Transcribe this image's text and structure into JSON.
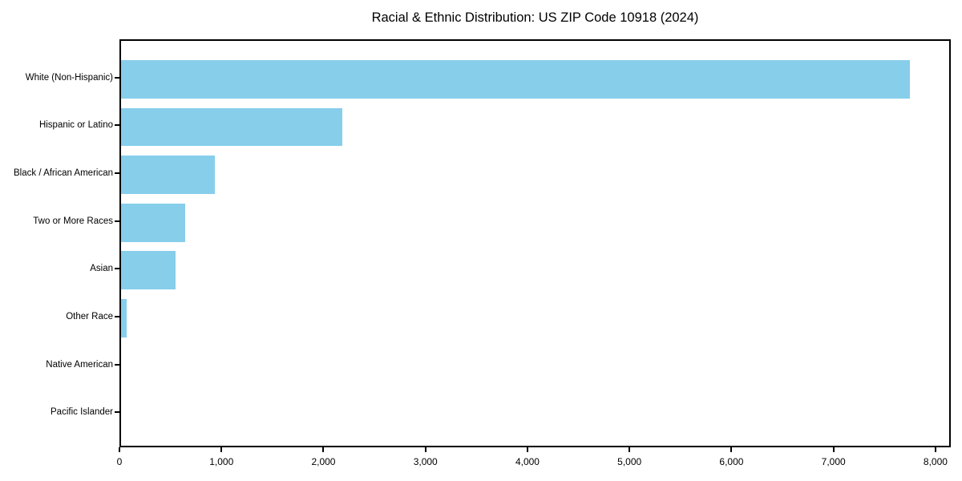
{
  "figure": {
    "title": "Racial & Ethnic Distribution: US ZIP Code 10918 (2024)"
  },
  "colors": {
    "bar": "#87CEEB",
    "spine": "#000000",
    "text": "#000000",
    "background": "#FFFFFF"
  },
  "chart_data": {
    "type": "bar",
    "orientation": "horizontal",
    "title": "Racial & Ethnic Distribution: US ZIP Code 10918 (2024)",
    "categories": [
      "White (Non-Hispanic)",
      "Hispanic or Latino",
      "Black / African American",
      "Two or More Races",
      "Asian",
      "Other Race",
      "Native American",
      "Pacific Islander"
    ],
    "values": [
      7765,
      2175,
      920,
      630,
      540,
      55,
      0,
      0
    ],
    "xlabel": "",
    "ylabel": "",
    "xlim": [
      0,
      8150
    ],
    "x_ticks": [
      0,
      1000,
      2000,
      3000,
      4000,
      5000,
      6000,
      7000,
      8000
    ],
    "x_tick_labels": [
      "0",
      "1,000",
      "2,000",
      "3,000",
      "4,000",
      "5,000",
      "6,000",
      "7,000",
      "8,000"
    ],
    "bar_color": "#87CEEB",
    "grid": false,
    "legend": "none"
  }
}
